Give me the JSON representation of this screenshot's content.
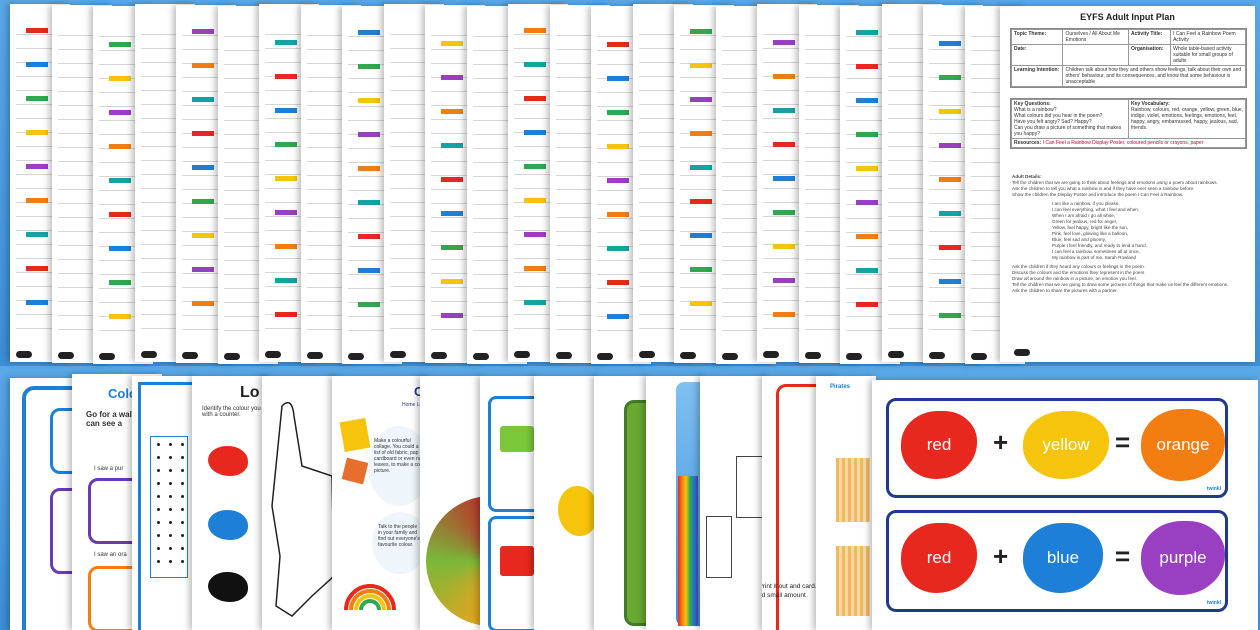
{
  "plan_sheet": {
    "title": "EYFS Adult Input Plan",
    "rows": [
      {
        "label": "Topic Theme:",
        "value": "Ourselves / All About Me Emotions",
        "label2": "Activity Title:",
        "value2": "I Can Feel a Rainbow Poem Activity"
      },
      {
        "label": "Date:",
        "value": "",
        "label2": "Organisation:",
        "value2": "Whole table-based activity suitable for small groups of adults"
      },
      {
        "label": "Learning Intention:",
        "value": "Children talk about how they and others show feelings, talk about their own and others' behaviour, and its consequences, and know that some behaviour is unacceptable.",
        "label2": "",
        "value2": ""
      }
    ],
    "key_questions_label": "Key Questions:",
    "key_vocab_label": "Key Vocabulary:",
    "key_vocab": "Rainbow, colours, red, orange, yellow, green, blue, indigo, violet, emotions, feelings, emotions, feel, happy, angry, embarrassed, happy, jealous, sad, friends.",
    "questions": [
      "What is a rainbow?",
      "What colours did you hear in the poem?",
      "Have you felt angry? Sad? Happy?",
      "Can you draw a picture of something that makes you happy?"
    ],
    "resources_label": "Resources:",
    "resources": "I Can Feel a Rainbow Display Poster, coloured pencils or crayons, paper",
    "adult_details_label": "Adult Details:",
    "steps": [
      "Tell the children that we are going to think about feelings and emotions using a poem about rainbows.",
      "Ask the children to tell you what a rainbow is and if they have ever seen a rainbow before.",
      "Show the children the Display Poster and introduce the poem I Can Feel a Rainbow."
    ],
    "poem": [
      "I am like a rainbow, if you please,",
      "I can feel everything, what I feel and when.",
      "When I am afraid I go all white,",
      "Green for jealous, red for anger,",
      "Yellow, feel happy, bright like the sun,",
      "Pink, feel love, glowing like a balloon,",
      "Blue, feel sad and gloomy,",
      "Purple I feel friendly, and ready to lend a hand.",
      "I can feel a rainbow, sometimes all at once,",
      "My rainbow is part of me. Sarah Rowland"
    ],
    "more_steps": [
      "Ask the children if they heard any colours or feelings in the poem.",
      "Discuss the colours and the emotions they represent in the poem.",
      "Draw all around the rainbow in a picture, an emotion you feel.",
      "Tell the children that we are going to draw some pictures of things that make us feel the different emotions.",
      "Ask the children to share the pictures with a partner."
    ]
  },
  "worksheets": {
    "splash_words": {
      "row1": {
        "a": "red",
        "b": "yellow",
        "result": "orange"
      },
      "row2": {
        "a": "red",
        "b": "blue",
        "result": "purple"
      },
      "plus": "+",
      "equals": "=",
      "brand": "twinkl"
    },
    "card_titles": {
      "colour_hunt": "Colo",
      "colour_hunt_text": "Go for a wall you can see a",
      "colour_hunt_line1": "I saw a pur",
      "colour_hunt_line2": "I saw an ora",
      "look": "Lo",
      "look_text": "Identify the colour you with a counter.",
      "collage": "Co",
      "collage_sub": "Home Lea",
      "collage_text": "Make a colourful collage. You could a list of old fabric, pap cardboard or even nat leaves, to make a col picture.",
      "talk_text": "Talk to the people in your family and find out everyone's favourite colour.",
      "pirates": "Pirates",
      "net_text": "This is a net f Print it out and card. Cut it ou lines and fold small amount"
    },
    "colors": {
      "red": "#e8281e",
      "yellow": "#f6c40a",
      "orange": "#f47d12",
      "blue": "#1d7fd8",
      "purple": "#9a3fc2",
      "frame": "#1f3a8a"
    }
  }
}
